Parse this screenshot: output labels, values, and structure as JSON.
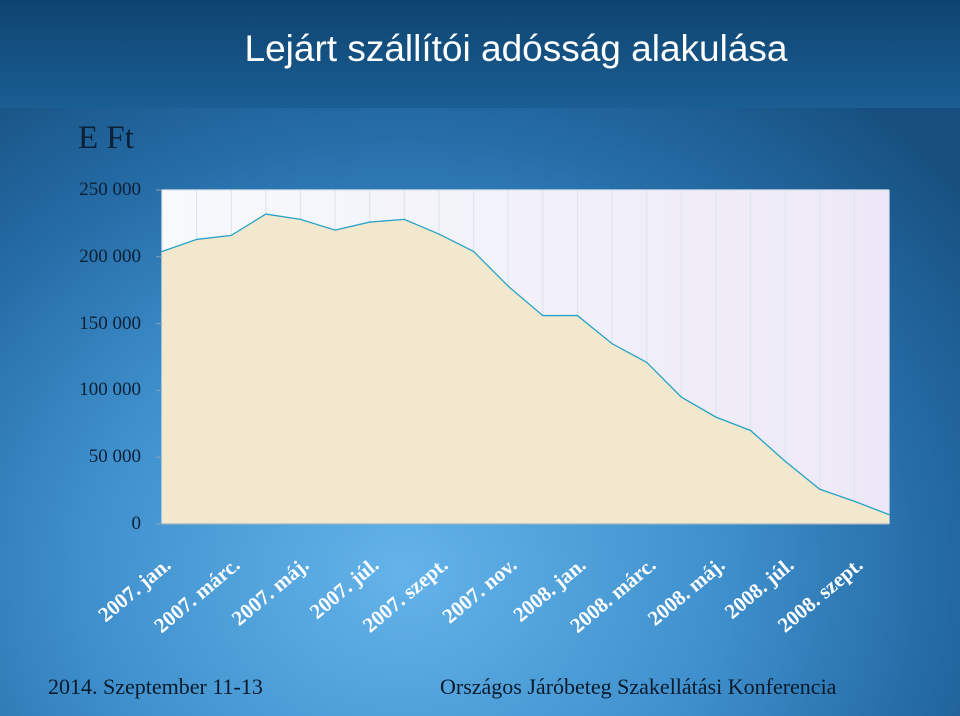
{
  "slide": {
    "title": "Lejárt szállítói adósság alakulása",
    "footer_left": "2014. Szeptember  11-13",
    "footer_right": "Országos Járóbeteg Szakellátási Konferencia"
  },
  "colors": {
    "area_fill": "#f1e8cd",
    "area_line": "#27a3c8",
    "plot_bg_left": "#f7fafc",
    "plot_bg_right": "#ede8f7",
    "grid": "#dfe4ee"
  },
  "chart_data": {
    "type": "area",
    "ylabel": "E Ft",
    "ylim": [
      0,
      250000
    ],
    "y_ticks": [
      0,
      50000,
      100000,
      150000,
      200000,
      250000
    ],
    "y_tick_labels": [
      "0",
      "50 000",
      "100 000",
      "150 000",
      "200 000",
      "250 000"
    ],
    "x_tick_labels": [
      "2007. jan.",
      "2007. márc.",
      "2007. máj.",
      "2007. júl.",
      "2007. szept.",
      "2007. nov.",
      "2008. jan.",
      "2008. márc.",
      "2008. máj.",
      "2008. júl.",
      "2008. szept."
    ],
    "x_tick_every": 2,
    "grid": true,
    "legend": "none",
    "series": [
      {
        "values": [
          204000,
          213000,
          216000,
          232000,
          228000,
          220000,
          226000,
          228000,
          217000,
          204000,
          178000,
          156000,
          156000,
          135000,
          121000,
          95000,
          80000,
          70000,
          47000,
          26000,
          17000,
          7000
        ]
      }
    ]
  }
}
